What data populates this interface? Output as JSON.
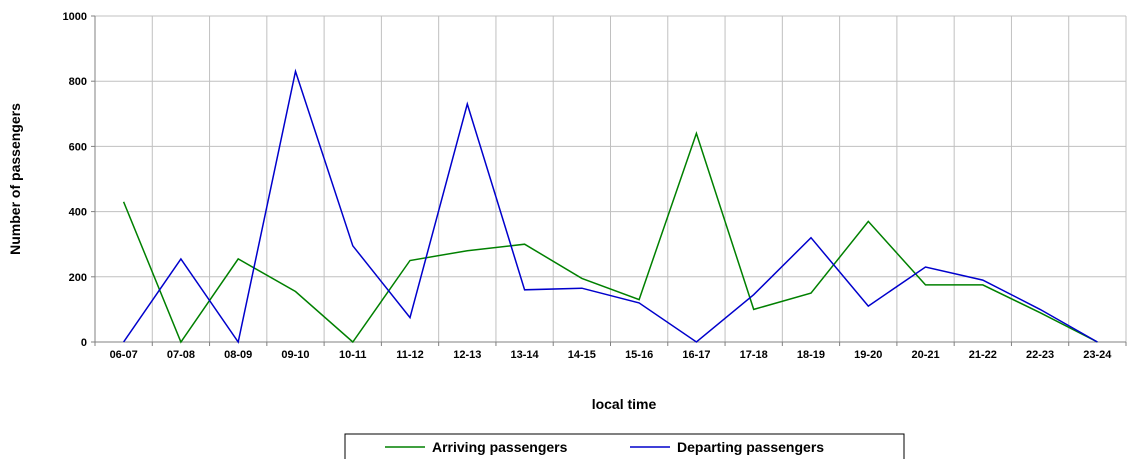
{
  "chart_data": {
    "type": "line",
    "categories": [
      "06-07",
      "07-08",
      "08-09",
      "09-10",
      "10-11",
      "11-12",
      "12-13",
      "13-14",
      "14-15",
      "15-16",
      "16-17",
      "17-18",
      "18-19",
      "19-20",
      "20-21",
      "21-22",
      "22-23",
      "23-24"
    ],
    "series": [
      {
        "name": "Arriving passengers",
        "color": "#008000",
        "values": [
          430,
          0,
          255,
          155,
          0,
          250,
          280,
          300,
          195,
          130,
          640,
          100,
          150,
          370,
          175,
          175,
          90,
          0
        ]
      },
      {
        "name": "Departing passengers",
        "color": "#0000cc",
        "values": [
          0,
          255,
          0,
          830,
          295,
          75,
          730,
          160,
          165,
          120,
          0,
          145,
          320,
          110,
          230,
          190,
          100,
          0
        ]
      }
    ],
    "xlabel": "local time",
    "ylabel": "Number of passengers",
    "ylim": [
      0,
      1000
    ],
    "yticks": [
      0,
      200,
      400,
      600,
      800,
      1000
    ],
    "grid": true,
    "legend_position": "bottom"
  }
}
